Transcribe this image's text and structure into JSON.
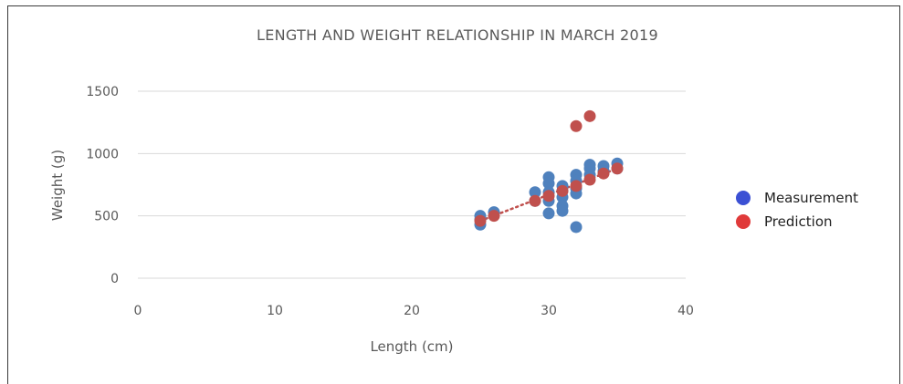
{
  "chart_data": {
    "type": "scatter",
    "title": "LENGTH AND WEIGHT  RELATIONSHIP  IN MARCH 2019",
    "xlabel": "Length  (cm)",
    "ylabel": "Weight  (g)",
    "xlim": [
      0,
      40
    ],
    "ylim": [
      0,
      1500
    ],
    "xticks": [
      "0",
      "10",
      "20",
      "30",
      "40"
    ],
    "yticks": [
      "0",
      "500",
      "1000",
      "1500"
    ],
    "grid": true,
    "legend_position": "right",
    "series": [
      {
        "name": "Measurement",
        "color": "#4f81bd",
        "legend_color": "#3b50d4",
        "points": [
          [
            25,
            430
          ],
          [
            25,
            470
          ],
          [
            25,
            500
          ],
          [
            26,
            530
          ],
          [
            29,
            690
          ],
          [
            29,
            620
          ],
          [
            30,
            810
          ],
          [
            30,
            760
          ],
          [
            30,
            690
          ],
          [
            30,
            620
          ],
          [
            30,
            520
          ],
          [
            31,
            740
          ],
          [
            31,
            700
          ],
          [
            31,
            650
          ],
          [
            31,
            580
          ],
          [
            31,
            540
          ],
          [
            32,
            830
          ],
          [
            32,
            780
          ],
          [
            32,
            720
          ],
          [
            32,
            680
          ],
          [
            32,
            410
          ],
          [
            33,
            910
          ],
          [
            33,
            880
          ],
          [
            33,
            830
          ],
          [
            34,
            900
          ],
          [
            34,
            860
          ],
          [
            35,
            920
          ],
          [
            35,
            880
          ]
        ]
      },
      {
        "name": "Prediction",
        "color": "#c0504d",
        "legend_color": "#e03a3a",
        "points": [
          [
            25,
            460
          ],
          [
            26,
            500
          ],
          [
            29,
            620
          ],
          [
            30,
            660
          ],
          [
            31,
            700
          ],
          [
            32,
            740
          ],
          [
            33,
            790
          ],
          [
            34,
            840
          ],
          [
            35,
            880
          ],
          [
            32,
            1220
          ],
          [
            33,
            1300
          ]
        ],
        "trendline": [
          [
            25,
            460
          ],
          [
            35,
            880
          ]
        ]
      }
    ]
  }
}
